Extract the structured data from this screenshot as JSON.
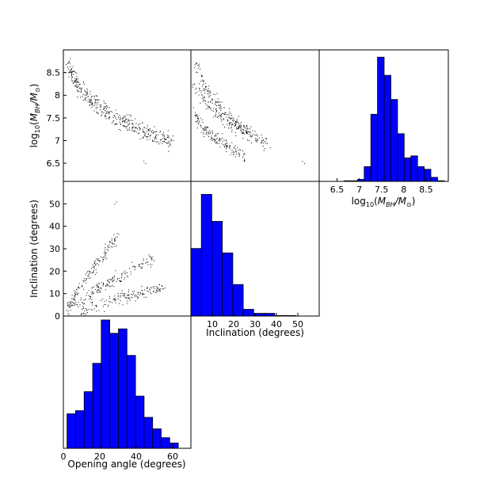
{
  "chart_data": [
    {
      "id": "scatter_bh_opening",
      "type": "scatter",
      "panel": "top-left",
      "xlabel": "",
      "ylabel": "log10(M_BH/M_sun)",
      "xlim": [
        0,
        70
      ],
      "ylim": [
        6.1,
        9.0
      ],
      "yticks": [
        6.5,
        7.0,
        7.5,
        8.0,
        8.5
      ],
      "trend": {
        "x": [
          3,
          5,
          8,
          12,
          16,
          20,
          25,
          30,
          35,
          40,
          45,
          50,
          60
        ],
        "y": [
          8.6,
          8.45,
          8.2,
          8.0,
          7.85,
          7.72,
          7.6,
          7.5,
          7.38,
          7.28,
          7.18,
          7.1,
          6.95
        ]
      },
      "outliers": [
        {
          "x": 44,
          "y": 6.55
        },
        {
          "x": 45,
          "y": 6.5
        }
      ]
    },
    {
      "id": "scatter_bh_inclination",
      "type": "scatter",
      "panel": "top-middle",
      "xlabel": "",
      "ylabel": "",
      "xlim": [
        0,
        60
      ],
      "ylim": [
        6.1,
        9.0
      ],
      "bands": [
        {
          "x": [
            2,
            4,
            6,
            10,
            15,
            20,
            28
          ],
          "y": [
            8.7,
            8.45,
            8.2,
            7.95,
            7.7,
            7.45,
            7.2
          ]
        },
        {
          "x": [
            1,
            5,
            10,
            15,
            20,
            28,
            36
          ],
          "y": [
            8.2,
            8.0,
            7.7,
            7.5,
            7.3,
            7.1,
            6.95
          ]
        },
        {
          "x": [
            1,
            5,
            10,
            15,
            20,
            25
          ],
          "y": [
            7.6,
            7.3,
            7.1,
            6.95,
            6.8,
            6.65
          ]
        }
      ],
      "outliers": [
        {
          "x": 52,
          "y": 6.55
        },
        {
          "x": 53,
          "y": 6.5
        }
      ]
    },
    {
      "id": "hist_bh",
      "type": "bar",
      "panel": "top-right",
      "xlabel": "log10(M_BH/M_sun)",
      "xlim": [
        6.1,
        9.0
      ],
      "xticks": [
        6.5,
        7.0,
        7.5,
        8.0,
        8.5
      ],
      "bin_edges": [
        6.66,
        6.81,
        6.96,
        7.11,
        7.26,
        7.41,
        7.56,
        7.71,
        7.86,
        8.01,
        8.16,
        8.31,
        8.46,
        8.61,
        8.76,
        8.91
      ],
      "counts": [
        1,
        1,
        3,
        22,
        100,
        185,
        158,
        122,
        71,
        35,
        38,
        22,
        18,
        6,
        1
      ],
      "ymax": 190,
      "bar_color": "#0000ff"
    },
    {
      "id": "scatter_incl_opening",
      "type": "scatter",
      "panel": "middle-left",
      "xlabel": "",
      "ylabel": "Inclination (degrees)",
      "xlim": [
        0,
        70
      ],
      "ylim": [
        0,
        60
      ],
      "yticks": [
        0,
        10,
        20,
        30,
        40,
        50
      ],
      "bands": [
        {
          "x": [
            2,
            5,
            10,
            15,
            20,
            25,
            30
          ],
          "y": [
            3,
            8,
            14,
            20,
            25,
            31,
            36
          ]
        },
        {
          "x": [
            5,
            10,
            15,
            20,
            25,
            30,
            35,
            40,
            45,
            50
          ],
          "y": [
            4,
            7,
            10,
            13,
            15,
            17,
            19,
            22,
            24,
            27
          ]
        },
        {
          "x": [
            10,
            15,
            20,
            25,
            30,
            35,
            40,
            45,
            50,
            55
          ],
          "y": [
            2,
            4,
            5,
            7,
            8,
            9,
            10,
            11,
            12,
            13
          ]
        }
      ],
      "outliers": [
        {
          "x": 28,
          "y": 50
        },
        {
          "x": 29,
          "y": 51
        }
      ]
    },
    {
      "id": "hist_inclination",
      "type": "bar",
      "panel": "middle-center",
      "xlabel": "Inclination (degrees)",
      "xlim": [
        0,
        60
      ],
      "xticks": [
        10,
        20,
        30,
        40,
        50
      ],
      "bin_edges": [
        0,
        4.9,
        9.8,
        14.7,
        19.6,
        24.5,
        29.4,
        34.3,
        39.2,
        44.1,
        49.0
      ],
      "counts": [
        150,
        270,
        210,
        140,
        70,
        15,
        6,
        6,
        1,
        1
      ],
      "ymax": 290,
      "bar_color": "#0000ff"
    },
    {
      "id": "hist_opening",
      "type": "bar",
      "panel": "bottom-left",
      "xlabel": "Opening angle (degrees)",
      "xlim": [
        0,
        70
      ],
      "xticks": [
        0,
        20,
        40,
        60
      ],
      "bin_edges": [
        2,
        6.7,
        11.4,
        16.1,
        20.8,
        25.5,
        30.2,
        34.9,
        39.6,
        44.3,
        49.0,
        53.7,
        58.4,
        63.1
      ],
      "counts": [
        78,
        85,
        128,
        192,
        290,
        260,
        270,
        210,
        118,
        70,
        44,
        24,
        12
      ],
      "ymax": 290,
      "bar_color": "#0000ff"
    }
  ]
}
